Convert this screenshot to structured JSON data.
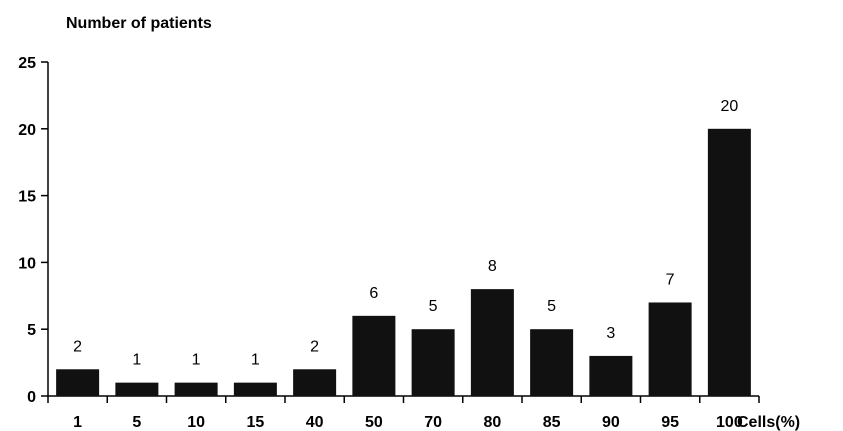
{
  "chart_data": {
    "type": "bar",
    "title": "",
    "ylabel": "Number of patients",
    "xlabel": "Cells(%)",
    "categories": [
      "1",
      "5",
      "10",
      "15",
      "40",
      "50",
      "70",
      "80",
      "85",
      "90",
      "95",
      "100"
    ],
    "values": [
      2,
      1,
      1,
      1,
      2,
      6,
      5,
      8,
      5,
      3,
      7,
      20
    ],
    "yticks": [
      "0",
      "5",
      "10",
      "15",
      "20",
      "25"
    ],
    "ylim": [
      0,
      25
    ],
    "grid": false,
    "legend": "none",
    "bar_color": "#111111",
    "axis_color": "#000000"
  }
}
